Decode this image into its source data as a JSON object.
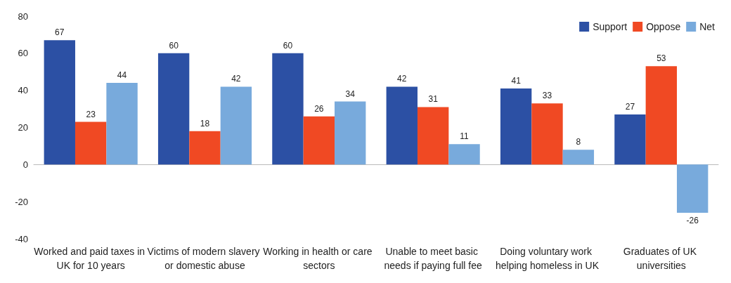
{
  "chart_data": {
    "type": "bar",
    "categories": [
      "Worked and paid taxes in UK for 10 years",
      "Victims of modern slavery or domestic abuse",
      "Working in health or care sectors",
      "Unable to meet basic needs if paying full fee",
      "Doing voluntary work helping homeless in UK",
      "Graduates of UK universities"
    ],
    "series": [
      {
        "name": "Support",
        "color": "#2c50a4",
        "values": [
          67,
          60,
          60,
          42,
          41,
          27
        ]
      },
      {
        "name": "Oppose",
        "color": "#f04923",
        "values": [
          23,
          18,
          26,
          31,
          33,
          53
        ]
      },
      {
        "name": "Net",
        "color": "#78aadc",
        "values": [
          44,
          42,
          34,
          11,
          8,
          -26
        ]
      }
    ],
    "ylim": [
      -40,
      80
    ],
    "yticks": [
      -40,
      -20,
      0,
      20,
      40,
      60,
      80
    ],
    "legend": "top right",
    "data_labels": true
  }
}
